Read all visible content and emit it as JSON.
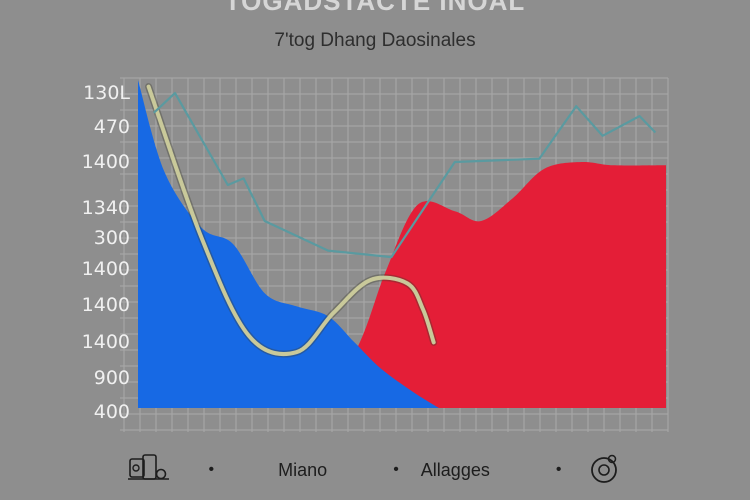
{
  "chart_data": {
    "type": "area",
    "title": "TOGADSTACTE INOAL",
    "subtitle": "7'tog Dhang Daosinales",
    "xlabel": "",
    "ylabel": "",
    "y_tick_labels": [
      "130L",
      "470",
      "1400",
      "1340",
      "300",
      "1400",
      "1400",
      "1400",
      "900",
      "400"
    ],
    "grid": true,
    "series": [
      {
        "name": "Miano",
        "color": "#1769e4",
        "points": [
          [
            0,
            100
          ],
          [
            0.05,
            72
          ],
          [
            0.12,
            55
          ],
          [
            0.18,
            50
          ],
          [
            0.24,
            35
          ],
          [
            0.3,
            31
          ],
          [
            0.36,
            28
          ],
          [
            0.41,
            20
          ],
          [
            0.46,
            12
          ],
          [
            0.52,
            5
          ],
          [
            0.57,
            0
          ]
        ]
      },
      {
        "name": "Allagges",
        "color": "#e41e37",
        "points": [
          [
            0.35,
            0
          ],
          [
            0.42,
            20
          ],
          [
            0.47,
            42
          ],
          [
            0.53,
            62
          ],
          [
            0.6,
            60
          ],
          [
            0.65,
            57
          ],
          [
            0.71,
            64
          ],
          [
            0.77,
            73
          ],
          [
            0.84,
            75
          ],
          [
            0.9,
            74
          ],
          [
            1.0,
            74
          ]
        ]
      },
      {
        "name": "",
        "color": "#c9c99a",
        "points": [
          [
            0.02,
            98
          ],
          [
            0.12,
            52
          ],
          [
            0.21,
            22
          ],
          [
            0.3,
            17
          ],
          [
            0.37,
            29
          ],
          [
            0.44,
            39
          ],
          [
            0.51,
            38
          ],
          [
            0.54,
            30
          ],
          [
            0.56,
            20
          ]
        ]
      },
      {
        "name": "",
        "color": "#5a9aa0",
        "points": [
          [
            0.03,
            90
          ],
          [
            0.07,
            96
          ],
          [
            0.17,
            68
          ],
          [
            0.2,
            70
          ],
          [
            0.24,
            57
          ],
          [
            0.36,
            48
          ],
          [
            0.48,
            46
          ],
          [
            0.6,
            75
          ],
          [
            0.76,
            76
          ],
          [
            0.83,
            92
          ],
          [
            0.88,
            83
          ],
          [
            0.95,
            89
          ],
          [
            0.98,
            84
          ]
        ]
      }
    ]
  },
  "legend": {
    "items": [
      "Miano",
      "Allagges"
    ],
    "separator": "•",
    "icons": [
      "phone-icon",
      "target-icon"
    ]
  }
}
